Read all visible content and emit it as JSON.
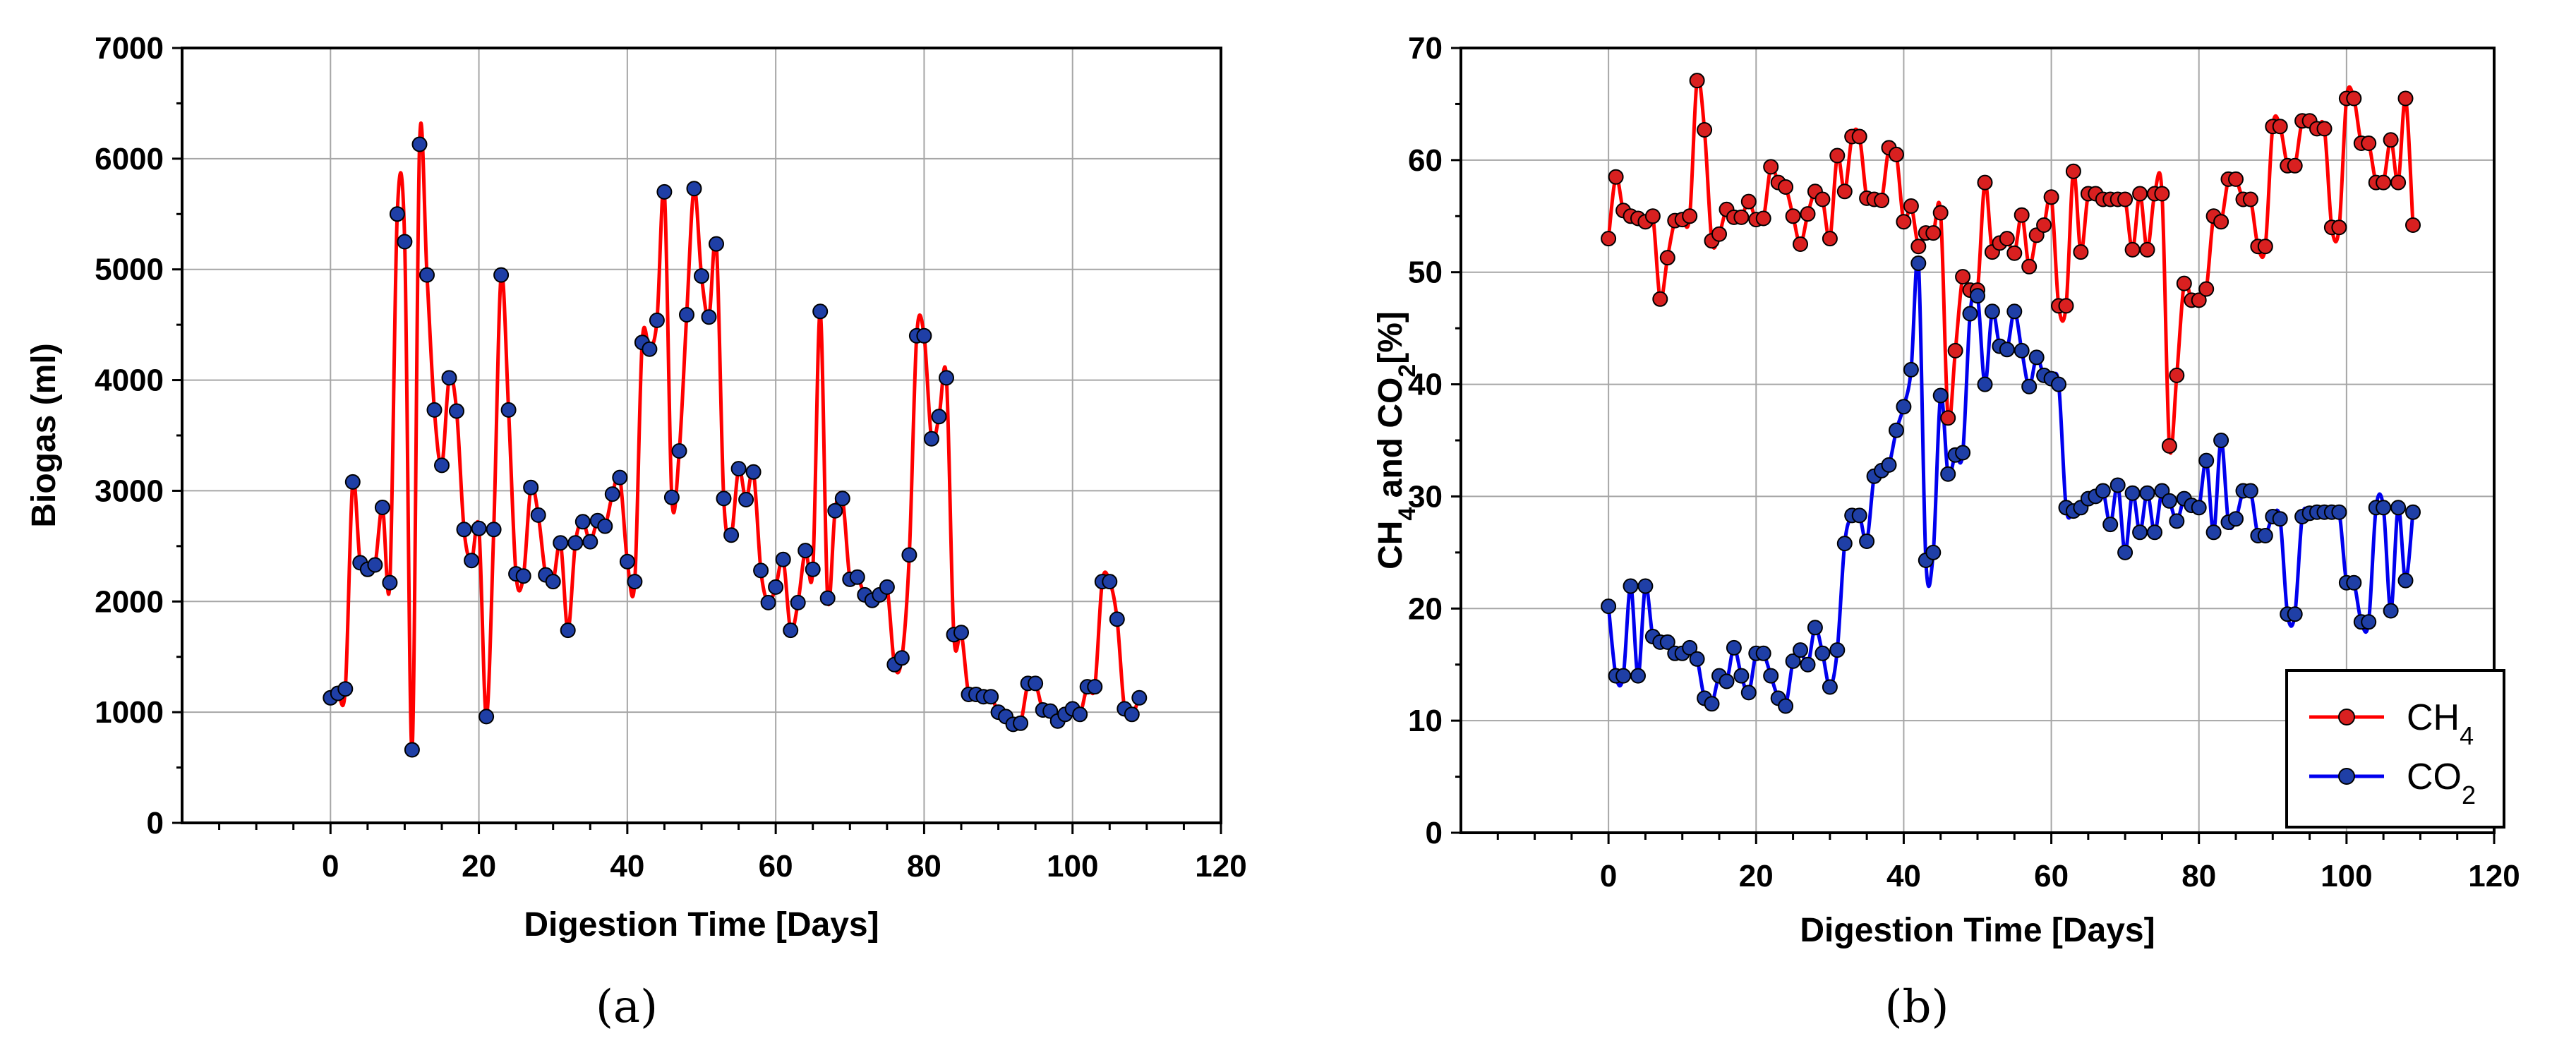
{
  "chart_data": [
    {
      "type": "line",
      "panel_label": "(a)",
      "xlabel": "Digestion Time [Days]",
      "ylabel": "Biogas (ml)",
      "xlim": [
        -20,
        120
      ],
      "ylim": [
        0,
        7000
      ],
      "xticks": [
        "0",
        "20",
        "40",
        "60",
        "80",
        "100",
        "120"
      ],
      "yticks": [
        "0",
        "1000",
        "2000",
        "3000",
        "4000",
        "5000",
        "6000",
        "7000"
      ],
      "grid": true,
      "series": [
        {
          "name": "Biogas",
          "line_color": "#ff0000",
          "marker_color": "#1f3fa6",
          "x": [
            0,
            1,
            2,
            3,
            4,
            5,
            6,
            7,
            8,
            9,
            10,
            11,
            12,
            13,
            14,
            15,
            16,
            17,
            18,
            19,
            20,
            21,
            22,
            23,
            24,
            25,
            26,
            27,
            28,
            29,
            30,
            31,
            32,
            33,
            34,
            35,
            36,
            37,
            38,
            39,
            40,
            41,
            42,
            43,
            44,
            45,
            46,
            47,
            48,
            49,
            50,
            51,
            52,
            53,
            54,
            55,
            56,
            57,
            58,
            59,
            60,
            61,
            62,
            63,
            64,
            65,
            66,
            67,
            68,
            69,
            70,
            71,
            72,
            73,
            74,
            75,
            76,
            77,
            78,
            79,
            80,
            81,
            82,
            83,
            84,
            85,
            86,
            87,
            88,
            89,
            90,
            91,
            92,
            93,
            94,
            95,
            96,
            97,
            98,
            99,
            100,
            101,
            102,
            103,
            104,
            105,
            106,
            107,
            108,
            109
          ],
          "y": [
            1130,
            1170,
            1210,
            3080,
            2350,
            2290,
            2330,
            2850,
            2170,
            5500,
            5250,
            660,
            6130,
            4950,
            3730,
            3230,
            4020,
            3720,
            2650,
            2370,
            2660,
            960,
            2650,
            4950,
            3730,
            2250,
            2230,
            3030,
            2780,
            2240,
            2180,
            2530,
            1740,
            2530,
            2720,
            2540,
            2730,
            2680,
            2970,
            3120,
            2360,
            2180,
            4340,
            4280,
            4540,
            5700,
            2940,
            3360,
            4590,
            5730,
            4940,
            4570,
            5230,
            2930,
            2600,
            3200,
            2920,
            3170,
            2280,
            1990,
            2130,
            2380,
            1740,
            1990,
            2460,
            2290,
            4620,
            2030,
            2820,
            2930,
            2200,
            2220,
            2060,
            2010,
            2060,
            2130,
            1430,
            1490,
            2420,
            4400,
            4400,
            3470,
            3670,
            4020,
            1700,
            1720,
            1160,
            1160,
            1140,
            1140,
            1000,
            960,
            890,
            900,
            1260,
            1260,
            1020,
            1010,
            920,
            980,
            1030,
            980,
            1230,
            1230,
            2180,
            2180,
            1840,
            1030,
            980,
            1130
          ]
        }
      ]
    },
    {
      "type": "line",
      "panel_label": "(b)",
      "xlabel": "Digestion Time [Days]",
      "ylabel": "CH4 and CO2[%]",
      "xlim": [
        -20,
        120
      ],
      "ylim": [
        0,
        70
      ],
      "xticks": [
        "0",
        "20",
        "40",
        "60",
        "80",
        "100",
        "120"
      ],
      "yticks": [
        "0",
        "10",
        "20",
        "30",
        "40",
        "50",
        "60",
        "70"
      ],
      "grid": true,
      "legend": {
        "position": "bottom-right",
        "entries": [
          "CH4",
          "CO2"
        ]
      },
      "series": [
        {
          "name": "CH4",
          "line_color": "#ff0000",
          "marker_color": "#d92020",
          "x": [
            0,
            1,
            2,
            3,
            4,
            5,
            6,
            7,
            8,
            9,
            10,
            11,
            12,
            13,
            14,
            15,
            16,
            17,
            18,
            19,
            20,
            21,
            22,
            23,
            24,
            25,
            26,
            27,
            28,
            29,
            30,
            31,
            32,
            33,
            34,
            35,
            36,
            37,
            38,
            39,
            40,
            41,
            42,
            43,
            44,
            45,
            46,
            47,
            48,
            49,
            50,
            51,
            52,
            53,
            54,
            55,
            56,
            57,
            58,
            59,
            60,
            61,
            62,
            63,
            64,
            65,
            66,
            67,
            68,
            69,
            70,
            71,
            72,
            73,
            74,
            75,
            76,
            77,
            78,
            79,
            80,
            81,
            82,
            83,
            84,
            85,
            86,
            87,
            88,
            89,
            90,
            91,
            92,
            93,
            94,
            95,
            96,
            97,
            98,
            99,
            100,
            101,
            102,
            103,
            104,
            105,
            106,
            107,
            108,
            109
          ],
          "y": [
            53.0,
            58.5,
            55.5,
            55.0,
            54.8,
            54.5,
            55.0,
            47.6,
            51.3,
            54.6,
            54.7,
            55.0,
            67.1,
            62.7,
            52.8,
            53.4,
            55.6,
            54.9,
            54.9,
            56.3,
            54.7,
            54.8,
            59.4,
            58.0,
            57.6,
            55.0,
            52.5,
            55.2,
            57.2,
            56.5,
            53.0,
            60.4,
            57.2,
            62.1,
            62.1,
            56.6,
            56.5,
            56.4,
            61.1,
            60.5,
            54.5,
            55.9,
            52.3,
            53.5,
            53.5,
            55.3,
            37.0,
            43.0,
            49.6,
            48.4,
            48.4,
            58.0,
            51.8,
            52.6,
            53.0,
            51.7,
            55.1,
            50.5,
            53.3,
            54.2,
            56.7,
            47.0,
            47.0,
            59.0,
            51.8,
            57.0,
            57.0,
            56.5,
            56.5,
            56.5,
            56.5,
            52.0,
            57.0,
            52.0,
            57.0,
            57.0,
            34.5,
            40.8,
            49.0,
            47.5,
            47.5,
            48.5,
            55.0,
            54.5,
            58.3,
            58.3,
            56.5,
            56.5,
            52.3,
            52.3,
            63.0,
            63.0,
            59.5,
            59.5,
            63.5,
            63.5,
            62.8,
            62.8,
            54.0,
            54.0,
            65.5,
            65.5,
            61.5,
            61.5,
            58.0,
            58.0,
            61.8,
            58.0,
            65.5,
            54.2
          ]
        },
        {
          "name": "CO2",
          "line_color": "#0000ee",
          "marker_color": "#1f3fa6",
          "x": [
            0,
            1,
            2,
            3,
            4,
            5,
            6,
            7,
            8,
            9,
            10,
            11,
            12,
            13,
            14,
            15,
            16,
            17,
            18,
            19,
            20,
            21,
            22,
            23,
            24,
            25,
            26,
            27,
            28,
            29,
            30,
            31,
            32,
            33,
            34,
            35,
            36,
            37,
            38,
            39,
            40,
            41,
            42,
            43,
            44,
            45,
            46,
            47,
            48,
            49,
            50,
            51,
            52,
            53,
            54,
            55,
            56,
            57,
            58,
            59,
            60,
            61,
            62,
            63,
            64,
            65,
            66,
            67,
            68,
            69,
            70,
            71,
            72,
            73,
            74,
            75,
            76,
            77,
            78,
            79,
            80,
            81,
            82,
            83,
            84,
            85,
            86,
            87,
            88,
            89,
            90,
            91,
            92,
            93,
            94,
            95,
            96,
            97,
            98,
            99,
            100,
            101,
            102,
            103,
            104,
            105,
            106,
            107,
            108,
            109
          ],
          "y": [
            20.2,
            14.0,
            14.0,
            22.0,
            14.0,
            22.0,
            17.5,
            17.0,
            17.0,
            16.0,
            16.0,
            16.5,
            15.5,
            12.0,
            11.5,
            14.0,
            13.5,
            16.5,
            14.0,
            12.5,
            16.0,
            16.0,
            14.0,
            12.0,
            11.3,
            15.3,
            16.3,
            15.0,
            18.3,
            16.0,
            13.0,
            16.3,
            25.8,
            28.3,
            28.3,
            26.0,
            31.8,
            32.3,
            32.8,
            35.9,
            38.0,
            41.3,
            50.8,
            24.3,
            25.0,
            39.0,
            32.0,
            33.7,
            33.9,
            46.3,
            47.9,
            40.0,
            46.5,
            43.4,
            43.1,
            46.5,
            43.0,
            39.8,
            42.4,
            40.8,
            40.5,
            40.0,
            29.0,
            28.7,
            29.0,
            29.8,
            30.0,
            30.5,
            27.5,
            31.0,
            25.0,
            30.3,
            26.8,
            30.3,
            26.8,
            30.5,
            29.6,
            27.8,
            29.8,
            29.2,
            29.0,
            33.2,
            26.8,
            35.0,
            27.7,
            28.0,
            30.5,
            30.5,
            26.5,
            26.5,
            28.2,
            28.0,
            19.5,
            19.5,
            28.2,
            28.5,
            28.6,
            28.6,
            28.6,
            28.6,
            22.3,
            22.3,
            18.8,
            18.8,
            29.0,
            29.0,
            19.8,
            29.0,
            22.5,
            28.6
          ]
        }
      ]
    }
  ]
}
